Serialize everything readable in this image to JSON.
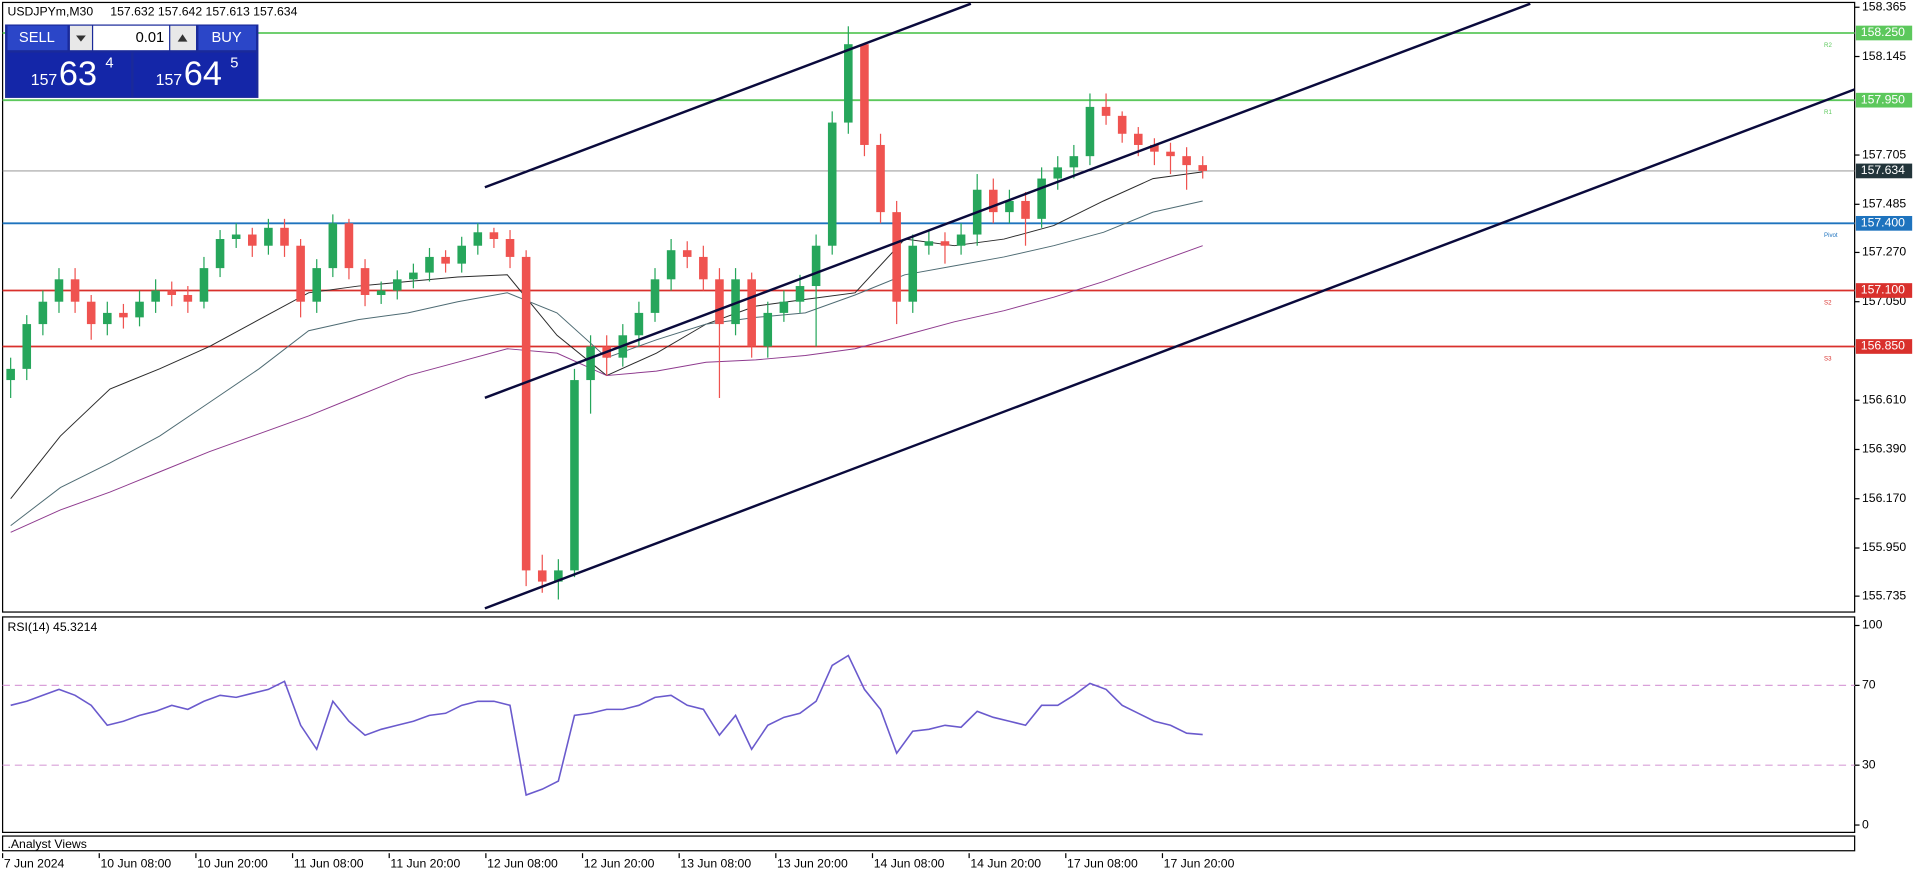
{
  "header": {
    "symbol": "USDJPYm,M30",
    "quote": "157.632 157.642 157.613 157.634"
  },
  "trade_panel": {
    "sell": "SELL",
    "buy": "BUY",
    "volume": "0.01",
    "sell_price": {
      "big": "157",
      "main": "63",
      "small": "4"
    },
    "buy_price": {
      "big": "157",
      "main": "64",
      "small": "5"
    }
  },
  "analyst_views": ".Analyst Views",
  "chart_data": {
    "type": "candlestick",
    "up_color": "#26a65b",
    "down_color": "#ef5350",
    "ylim": [
      155.664,
      158.381
    ],
    "yticks": [
      158.365,
      158.145,
      157.705,
      157.485,
      {
        "value": 157.27,
        "label": "157.270"
      },
      {
        "value": 157.05,
        "label": "157.050"
      },
      {
        "value": 156.61,
        "label": "156.610"
      },
      {
        "value": 156.39,
        "label": "156.390"
      },
      {
        "value": 156.17,
        "label": "156.170"
      },
      {
        "value": 155.95,
        "label": "155.950"
      },
      155.735
    ],
    "current_price": 157.634,
    "levels": [
      {
        "name": "R2",
        "value": 158.25,
        "label": "158.250",
        "color": "#5cc85c"
      },
      {
        "name": "R1",
        "value": 157.95,
        "label": "157.950",
        "color": "#5cc85c"
      },
      {
        "name": "Pivot",
        "value": 157.4,
        "label": "157.400",
        "color": "#1e73be"
      },
      {
        "name": "S2",
        "value": 157.1,
        "label": "157.100",
        "color": "#d9302c"
      },
      {
        "name": "S3",
        "value": 156.85,
        "label": "156.850",
        "color": "#d9302c"
      }
    ],
    "x_labels": [
      "7 Jun 2024",
      "10 Jun 08:00",
      "10 Jun 20:00",
      "11 Jun 08:00",
      "11 Jun 20:00",
      "12 Jun 08:00",
      "12 Jun 20:00",
      "13 Jun 08:00",
      "13 Jun 20:00",
      "14 Jun 08:00",
      "14 Jun 20:00",
      "17 Jun 08:00",
      "17 Jun 20:00"
    ],
    "ohlc": [
      [
        156.7,
        156.8,
        156.62,
        156.75
      ],
      [
        156.75,
        156.99,
        156.7,
        156.95
      ],
      [
        156.95,
        157.1,
        156.9,
        157.05
      ],
      [
        157.05,
        157.2,
        157.0,
        157.15
      ],
      [
        157.15,
        157.2,
        157.0,
        157.05
      ],
      [
        157.05,
        157.08,
        156.88,
        156.95
      ],
      [
        156.95,
        157.05,
        156.9,
        157.0
      ],
      [
        157.0,
        157.04,
        156.93,
        156.98
      ],
      [
        156.98,
        157.1,
        156.94,
        157.05
      ],
      [
        157.05,
        157.15,
        157.0,
        157.1
      ],
      [
        157.1,
        157.14,
        157.03,
        157.08
      ],
      [
        157.08,
        157.12,
        157.0,
        157.05
      ],
      [
        157.05,
        157.25,
        157.02,
        157.2
      ],
      [
        157.2,
        157.37,
        157.16,
        157.33
      ],
      [
        157.33,
        157.4,
        157.29,
        157.35
      ],
      [
        157.35,
        157.38,
        157.25,
        157.3
      ],
      [
        157.3,
        157.42,
        157.26,
        157.38
      ],
      [
        157.38,
        157.42,
        157.25,
        157.3
      ],
      [
        157.3,
        157.33,
        156.98,
        157.05
      ],
      [
        157.05,
        157.24,
        157.0,
        157.2
      ],
      [
        157.2,
        157.44,
        157.16,
        157.4
      ],
      [
        157.4,
        157.42,
        157.15,
        157.2
      ],
      [
        157.2,
        157.24,
        157.03,
        157.08
      ],
      [
        157.08,
        157.14,
        157.04,
        157.1
      ],
      [
        157.1,
        157.19,
        157.06,
        157.15
      ],
      [
        157.15,
        157.22,
        157.11,
        157.18
      ],
      [
        157.18,
        157.29,
        157.14,
        157.25
      ],
      [
        157.25,
        157.28,
        157.18,
        157.22
      ],
      [
        157.22,
        157.34,
        157.18,
        157.3
      ],
      [
        157.3,
        157.4,
        157.26,
        157.36
      ],
      [
        157.36,
        157.38,
        157.29,
        157.33
      ],
      [
        157.33,
        157.37,
        157.2,
        157.25
      ],
      [
        157.25,
        157.28,
        155.78,
        155.85
      ],
      [
        155.85,
        155.92,
        155.75,
        155.8
      ],
      [
        155.8,
        155.9,
        155.72,
        155.85
      ],
      [
        155.85,
        156.75,
        155.82,
        156.7
      ],
      [
        156.7,
        156.9,
        156.55,
        156.85
      ],
      [
        156.85,
        156.9,
        156.72,
        156.8
      ],
      [
        156.8,
        156.95,
        156.76,
        156.9
      ],
      [
        156.9,
        157.05,
        156.85,
        157.0
      ],
      [
        157.0,
        157.2,
        156.96,
        157.15
      ],
      [
        157.15,
        157.33,
        157.1,
        157.28
      ],
      [
        157.28,
        157.32,
        157.2,
        157.25
      ],
      [
        157.25,
        157.3,
        157.1,
        157.15
      ],
      [
        157.15,
        157.2,
        156.62,
        156.95
      ],
      [
        156.95,
        157.2,
        156.9,
        157.15
      ],
      [
        157.15,
        157.18,
        156.8,
        156.85
      ],
      [
        156.85,
        157.05,
        156.8,
        157.0
      ],
      [
        157.0,
        157.1,
        156.96,
        157.05
      ],
      [
        157.05,
        157.17,
        157.0,
        157.12
      ],
      [
        157.12,
        157.35,
        156.85,
        157.3
      ],
      [
        157.3,
        157.9,
        157.26,
        157.85
      ],
      [
        157.85,
        158.28,
        157.8,
        158.2
      ],
      [
        158.2,
        158.2,
        157.7,
        157.75
      ],
      [
        157.75,
        157.8,
        157.4,
        157.45
      ],
      [
        157.45,
        157.5,
        156.95,
        157.05
      ],
      [
        157.05,
        157.35,
        157.0,
        157.3
      ],
      [
        157.3,
        157.37,
        157.26,
        157.32
      ],
      [
        157.32,
        157.36,
        157.22,
        157.3
      ],
      [
        157.3,
        157.4,
        157.26,
        157.35
      ],
      [
        157.35,
        157.62,
        157.3,
        157.55
      ],
      [
        157.55,
        157.6,
        157.4,
        157.45
      ],
      [
        157.45,
        157.55,
        157.4,
        157.5
      ],
      [
        157.5,
        157.54,
        157.3,
        157.42
      ],
      [
        157.42,
        157.65,
        157.38,
        157.6
      ],
      [
        157.6,
        157.7,
        157.55,
        157.65
      ],
      [
        157.65,
        157.75,
        157.6,
        157.7
      ],
      [
        157.7,
        157.98,
        157.66,
        157.92
      ],
      [
        157.92,
        157.98,
        157.84,
        157.88
      ],
      [
        157.88,
        157.9,
        157.76,
        157.8
      ],
      [
        157.8,
        157.83,
        157.7,
        157.75
      ],
      [
        157.75,
        157.78,
        157.66,
        157.72
      ],
      [
        157.72,
        157.76,
        157.62,
        157.7
      ],
      [
        157.7,
        157.74,
        157.55,
        157.66
      ],
      [
        157.66,
        157.7,
        157.6,
        157.634
      ]
    ],
    "moving_averages": [
      {
        "color": "#2a2a2a",
        "values": [
          156.17,
          156.45,
          156.66,
          156.75,
          156.85,
          156.97,
          157.09,
          157.12,
          157.14,
          157.16,
          157.17,
          156.9,
          156.72,
          156.82,
          156.95,
          157.03,
          157.06,
          157.09,
          157.33,
          157.3,
          157.33,
          157.39,
          157.5,
          157.6,
          157.63
        ]
      },
      {
        "color": "#4e6b73",
        "values": [
          156.05,
          156.22,
          156.33,
          156.45,
          156.6,
          156.75,
          156.92,
          156.97,
          157.0,
          157.05,
          157.09,
          157.0,
          156.8,
          156.88,
          156.95,
          156.98,
          157.0,
          157.08,
          157.17,
          157.21,
          157.25,
          157.3,
          157.36,
          157.45,
          157.5
        ]
      },
      {
        "color": "#8e3a8e",
        "values": [
          156.02,
          156.12,
          156.2,
          156.29,
          156.38,
          156.46,
          156.54,
          156.63,
          156.72,
          156.78,
          156.84,
          156.82,
          156.72,
          156.74,
          156.78,
          156.79,
          156.81,
          156.84,
          156.9,
          156.96,
          157.01,
          157.07,
          157.14,
          157.22,
          157.3
        ]
      }
    ],
    "rsi": {
      "title": "RSI(14) 45.3214",
      "color": "#6a5acd",
      "ylim": [
        0,
        100
      ],
      "yticks": [
        100,
        70,
        30,
        0
      ],
      "levels": [
        70,
        30
      ],
      "values": [
        60,
        62,
        65,
        68,
        65,
        60,
        50,
        52,
        55,
        57,
        60,
        58,
        62,
        65,
        64,
        66,
        68,
        72,
        50,
        38,
        62,
        52,
        45,
        48,
        50,
        52,
        55,
        56,
        60,
        62,
        62,
        60,
        15,
        18,
        22,
        55,
        56,
        58,
        58,
        60,
        64,
        65,
        60,
        58,
        45,
        55,
        38,
        50,
        54,
        56,
        62,
        80,
        85,
        68,
        58,
        36,
        47,
        48,
        50,
        49,
        57,
        54,
        52,
        50,
        60,
        60,
        65,
        71,
        68,
        60,
        56,
        52,
        50,
        46,
        45.3214
      ]
    }
  }
}
